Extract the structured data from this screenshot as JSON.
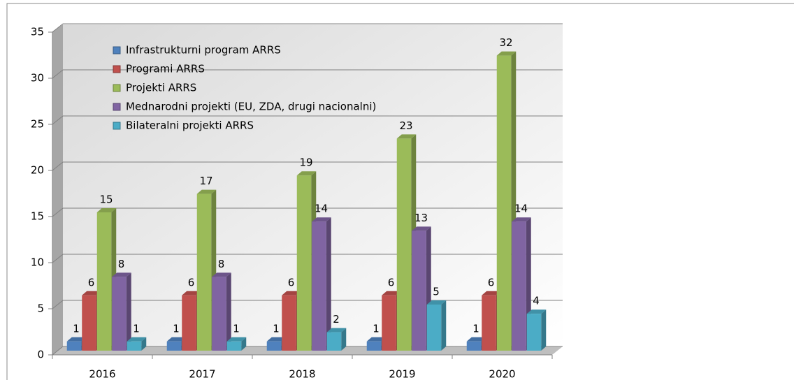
{
  "chart_data": {
    "type": "bar3d",
    "categories": [
      "2016",
      "2017",
      "2018",
      "2019",
      "2020"
    ],
    "series": [
      {
        "name": "Infrastrukturni program ARRS",
        "color": "#4f81bd",
        "values": [
          1,
          1,
          1,
          1,
          1
        ]
      },
      {
        "name": "Programi ARRS",
        "color": "#c0504d",
        "values": [
          6,
          6,
          6,
          6,
          6
        ]
      },
      {
        "name": "Projekti ARRS",
        "color": "#9bbb59",
        "values": [
          15,
          17,
          19,
          23,
          32
        ]
      },
      {
        "name": "Mednarodni projekti (EU, ZDA, drugi nacionalni)",
        "color": "#8064a2",
        "values": [
          8,
          8,
          14,
          13,
          14
        ]
      },
      {
        "name": "Bilateralni projekti ARRS",
        "color": "#4bacc6",
        "values": [
          1,
          1,
          2,
          5,
          4
        ]
      }
    ],
    "ylim": [
      0,
      35
    ],
    "yticks": [
      0,
      5,
      10,
      15,
      20,
      25,
      30,
      35
    ],
    "grid": true,
    "legend": "upper-left"
  }
}
